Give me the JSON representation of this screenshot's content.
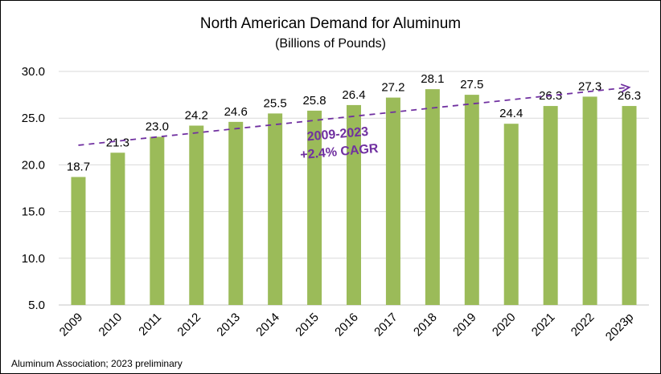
{
  "chart_data": {
    "type": "bar",
    "title": "North American Demand for Aluminum",
    "subtitle": "(Billions of Pounds)",
    "categories": [
      "2009",
      "2010",
      "2011",
      "2012",
      "2013",
      "2014",
      "2015",
      "2016",
      "2017",
      "2018",
      "2019",
      "2020",
      "2021",
      "2022",
      "2023p"
    ],
    "values": [
      18.7,
      21.3,
      23.0,
      24.2,
      24.6,
      25.5,
      25.8,
      26.4,
      27.2,
      28.1,
      27.5,
      24.4,
      26.3,
      27.3,
      26.3
    ],
    "data_labels": [
      "18.7",
      "21.3",
      "23.0",
      "24.2",
      "24.6",
      "25.5",
      "25.8",
      "26.4",
      "27.2",
      "28.1",
      "27.5",
      "24.4",
      "26.3",
      "27.3",
      "26.3"
    ],
    "ylim": [
      5,
      30
    ],
    "yticks": [
      "5.0",
      "10.0",
      "15.0",
      "20.0",
      "25.0",
      "30.0"
    ],
    "grid": true,
    "xlabel": "",
    "ylabel": "",
    "bar_color": "#9bbb59",
    "trendline": {
      "style": "dashed-arrow",
      "color": "#7030a0",
      "from": [
        "2009",
        22.1
      ],
      "to": [
        "2023p",
        28.3
      ]
    },
    "annotation": {
      "line1": "2009-2023",
      "line2": "+2.4% CAGR"
    },
    "source": "Aluminum Association; 2023 preliminary"
  }
}
